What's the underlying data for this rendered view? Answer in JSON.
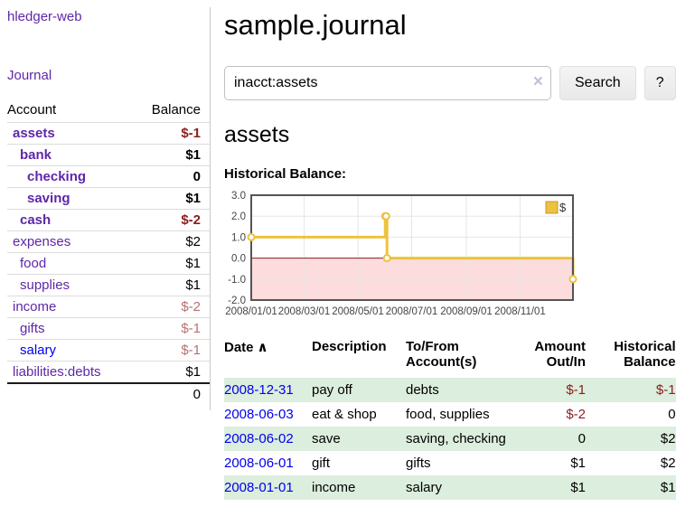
{
  "app": {
    "title": "hledger-web"
  },
  "sidebar": {
    "journal_link": "Journal",
    "table": {
      "headers": {
        "account": "Account",
        "balance": "Balance"
      },
      "rows": [
        {
          "name": "assets",
          "balance": "$-1"
        },
        {
          "name": "bank",
          "balance": "$1"
        },
        {
          "name": "checking",
          "balance": "0"
        },
        {
          "name": "saving",
          "balance": "$1"
        },
        {
          "name": "cash",
          "balance": "$-2"
        },
        {
          "name": "expenses",
          "balance": "$2"
        },
        {
          "name": "food",
          "balance": "$1"
        },
        {
          "name": "supplies",
          "balance": "$1"
        },
        {
          "name": "income",
          "balance": "$-2"
        },
        {
          "name": "gifts",
          "balance": "$-1"
        },
        {
          "name": "salary",
          "balance": "$-1"
        },
        {
          "name": "liabilities:debts",
          "balance": "$1"
        }
      ],
      "total": "0"
    }
  },
  "main": {
    "title": "sample.journal",
    "search": {
      "value": "inacct:assets",
      "button_label": "Search",
      "help_label": "?"
    },
    "account_heading": "assets",
    "chart_title": "Historical Balance:",
    "register": {
      "headers": {
        "date": "Date",
        "description": "Description",
        "accounts": "To/From Account(s)",
        "amount": "Amount Out/In",
        "balance": "Historical Balance"
      },
      "rows": [
        {
          "date": "2008-12-31",
          "description": "pay off",
          "accounts": "debts",
          "amount": "$-1",
          "balance": "$-1"
        },
        {
          "date": "2008-06-03",
          "description": "eat & shop",
          "accounts": "food, supplies",
          "amount": "$-2",
          "balance": "0"
        },
        {
          "date": "2008-06-02",
          "description": "save",
          "accounts": "saving, checking",
          "amount": "0",
          "balance": "$2"
        },
        {
          "date": "2008-06-01",
          "description": "gift",
          "accounts": "gifts",
          "amount": "$1",
          "balance": "$2"
        },
        {
          "date": "2008-01-01",
          "description": "income",
          "accounts": "salary",
          "amount": "$1",
          "balance": "$1"
        }
      ]
    }
  },
  "icons": {
    "sort_ascending": "∧",
    "clear_search": "×"
  },
  "colors": {
    "link_purple": "#5e27a8",
    "link_blue": "#0000ee",
    "negative_strong": "#8b1d1d",
    "negative_muted": "#b96f6f",
    "row_green": "#dceedd",
    "chart_gold": "#edc240"
  },
  "chart_data": {
    "type": "line",
    "style": "step-after",
    "title": "Historical Balance:",
    "xlim": [
      "2008-01-01",
      "2008-12-31"
    ],
    "ylim": [
      -2,
      3
    ],
    "y_ticks": [
      3.0,
      2.0,
      1.0,
      0.0,
      -1.0,
      -2.0
    ],
    "x_ticks": [
      {
        "date": "2008-01-01",
        "label": "2008/01/01"
      },
      {
        "date": "2008-03-01",
        "label": "2008/03/01"
      },
      {
        "date": "2008-05-01",
        "label": "2008/05/01"
      },
      {
        "date": "2008-07-01",
        "label": "2008/07/01"
      },
      {
        "date": "2008-09-01",
        "label": "2008/09/01"
      },
      {
        "date": "2008-11-01",
        "label": "2008/11/01"
      }
    ],
    "series": [
      {
        "name": "$",
        "color": "#edc240",
        "points": [
          [
            "2008-01-01",
            1
          ],
          [
            "2008-06-01",
            2
          ],
          [
            "2008-06-02",
            2
          ],
          [
            "2008-06-03",
            0
          ],
          [
            "2008-12-31",
            -1
          ]
        ]
      }
    ],
    "grid": true,
    "legend_position": "top-right",
    "negative_region_color": "#fcdcdc",
    "zero_line_color": "#8b1a1a"
  }
}
